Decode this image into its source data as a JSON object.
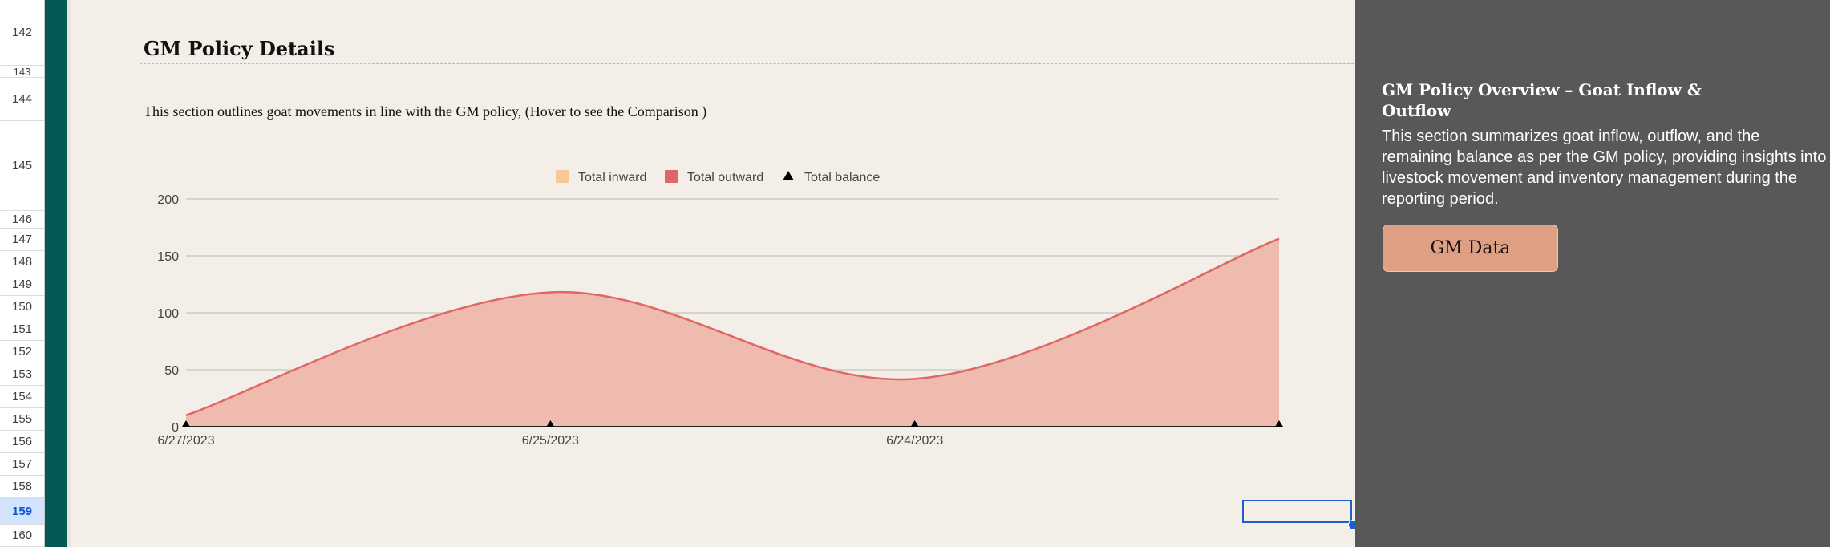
{
  "row_headers": [
    "142",
    "143",
    "144",
    "145",
    "146",
    "147",
    "148",
    "149",
    "150",
    "151",
    "152",
    "153",
    "154",
    "155",
    "156",
    "157",
    "158",
    "159",
    "160"
  ],
  "selected_row": "159",
  "section": {
    "title": "GM Policy Details",
    "description": "This section outlines goat movements in line with the GM policy, (Hover to see the Comparison )"
  },
  "chart_data": {
    "type": "area",
    "categories": [
      "6/27/2023",
      "6/25/2023",
      "6/24/2023",
      ""
    ],
    "series": [
      {
        "name": "Total inward",
        "values": [
          0,
          0,
          0,
          0
        ],
        "color": "#f9c896"
      },
      {
        "name": "Total outward",
        "values": [
          10,
          118,
          42,
          165
        ],
        "color": "#e06666"
      },
      {
        "name": "Total balance",
        "values": [
          0,
          0,
          0,
          0
        ],
        "color": "#000000"
      }
    ],
    "legend": [
      "Total inward",
      "Total outward",
      "Total balance"
    ],
    "legend_position": "top",
    "y_ticks": [
      "0",
      "50",
      "100",
      "150",
      "200"
    ],
    "ylim": [
      0,
      200
    ],
    "grid": true,
    "title": "",
    "xlabel": "",
    "ylabel": ""
  },
  "panel": {
    "title": "GM Policy Overview – Goat Inflow & Outflow",
    "description": "This section summarizes goat inflow, outflow, and the remaining balance as per the GM policy, providing insights into livestock movement and inventory management during the reporting period.",
    "button_label": "GM Data"
  },
  "colors": {
    "sidebar_teal": "#025955",
    "background": "#f3eee8",
    "panel_background": "#585858",
    "button": "#de9f82",
    "selection": "#1a5fd0"
  }
}
